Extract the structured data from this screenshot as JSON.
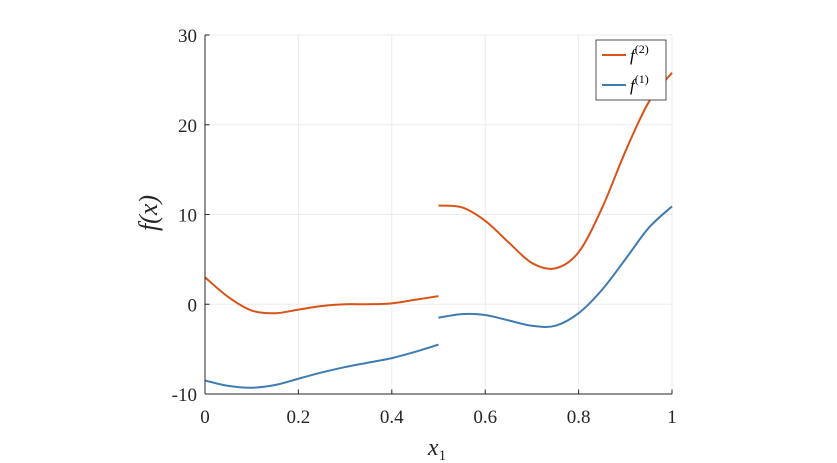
{
  "chart_data": {
    "type": "line",
    "title": "",
    "xlabel": "x",
    "xlabel_sub": "1",
    "ylabel": "f(x)",
    "xlim": [
      0,
      1
    ],
    "ylim": [
      -10,
      30
    ],
    "xticks": [
      0,
      0.2,
      0.4,
      0.6,
      0.8,
      1
    ],
    "xtick_labels": [
      "0",
      "0.2",
      "0.4",
      "0.6",
      "0.8",
      "1"
    ],
    "yticks": [
      -10,
      0,
      10,
      20,
      30
    ],
    "ytick_labels": [
      "-10",
      "0",
      "10",
      "20",
      "30"
    ],
    "grid": true,
    "legend_position": "top-right",
    "series": [
      {
        "name": "f",
        "superscript": "(2)",
        "color": "#D95319",
        "segments": [
          {
            "x": [
              0,
              0.05,
              0.1,
              0.15,
              0.2,
              0.25,
              0.3,
              0.35,
              0.4,
              0.45,
              0.5
            ],
            "y": [
              3.0,
              0.8,
              -0.7,
              -1.0,
              -0.6,
              -0.2,
              0.0,
              0.0,
              0.1,
              0.5,
              0.9
            ]
          },
          {
            "x": [
              0.5,
              0.55,
              0.6,
              0.65,
              0.7,
              0.75,
              0.8,
              0.85,
              0.9,
              0.95,
              1.0
            ],
            "y": [
              11.0,
              10.8,
              9.3,
              6.9,
              4.6,
              4.0,
              5.8,
              10.7,
              17.0,
              22.5,
              25.8
            ]
          }
        ]
      },
      {
        "name": "f",
        "superscript": "(1)",
        "color": "#3E7CB1",
        "segments": [
          {
            "x": [
              0,
              0.05,
              0.1,
              0.15,
              0.2,
              0.25,
              0.3,
              0.35,
              0.4,
              0.45,
              0.5
            ],
            "y": [
              -8.5,
              -9.1,
              -9.3,
              -9.0,
              -8.3,
              -7.6,
              -7.0,
              -6.5,
              -6.0,
              -5.3,
              -4.5
            ]
          },
          {
            "x": [
              0.5,
              0.55,
              0.6,
              0.65,
              0.7,
              0.75,
              0.8,
              0.85,
              0.9,
              0.95,
              1.0
            ],
            "y": [
              -1.5,
              -1.1,
              -1.2,
              -1.8,
              -2.4,
              -2.4,
              -1.0,
              1.6,
              5.0,
              8.5,
              10.9
            ]
          }
        ]
      }
    ]
  }
}
